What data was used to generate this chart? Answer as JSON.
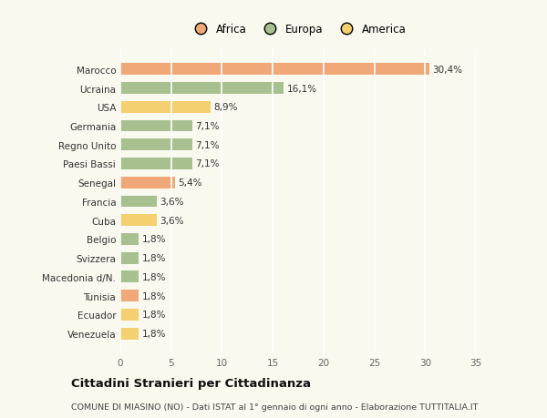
{
  "categories": [
    "Venezuela",
    "Ecuador",
    "Tunisia",
    "Macedonia d/N.",
    "Svizzera",
    "Belgio",
    "Cuba",
    "Francia",
    "Senegal",
    "Paesi Bassi",
    "Regno Unito",
    "Germania",
    "USA",
    "Ucraina",
    "Marocco"
  ],
  "values": [
    1.8,
    1.8,
    1.8,
    1.8,
    1.8,
    1.8,
    3.6,
    3.6,
    5.4,
    7.1,
    7.1,
    7.1,
    8.9,
    16.1,
    30.4
  ],
  "colors": [
    "#f5d070",
    "#f5d070",
    "#f0a878",
    "#a8c090",
    "#a8c090",
    "#a8c090",
    "#f5d070",
    "#a8c090",
    "#f0a878",
    "#a8c090",
    "#a8c090",
    "#a8c090",
    "#f5d070",
    "#a8c090",
    "#f0a878"
  ],
  "labels": [
    "1,8%",
    "1,8%",
    "1,8%",
    "1,8%",
    "1,8%",
    "1,8%",
    "3,6%",
    "3,6%",
    "5,4%",
    "7,1%",
    "7,1%",
    "7,1%",
    "8,9%",
    "16,1%",
    "30,4%"
  ],
  "legend": [
    {
      "label": "Africa",
      "color": "#f0a878"
    },
    {
      "label": "Europa",
      "color": "#a8c090"
    },
    {
      "label": "America",
      "color": "#f5d070"
    }
  ],
  "xlim": [
    0,
    35
  ],
  "xticks": [
    0,
    5,
    10,
    15,
    20,
    25,
    30,
    35
  ],
  "title": "Cittadini Stranieri per Cittadinanza",
  "subtitle": "COMUNE DI MIASINO (NO) - Dati ISTAT al 1° gennaio di ogni anno - Elaborazione TUTTITALIA.IT",
  "background_color": "#f9f9f0",
  "plot_bg_color": "#f9f9f0",
  "grid_color": "#ffffff",
  "label_fontsize": 7.5,
  "tick_fontsize": 7.5,
  "legend_fontsize": 8.5,
  "title_fontsize": 9.5,
  "subtitle_fontsize": 6.8,
  "bar_height": 0.62
}
